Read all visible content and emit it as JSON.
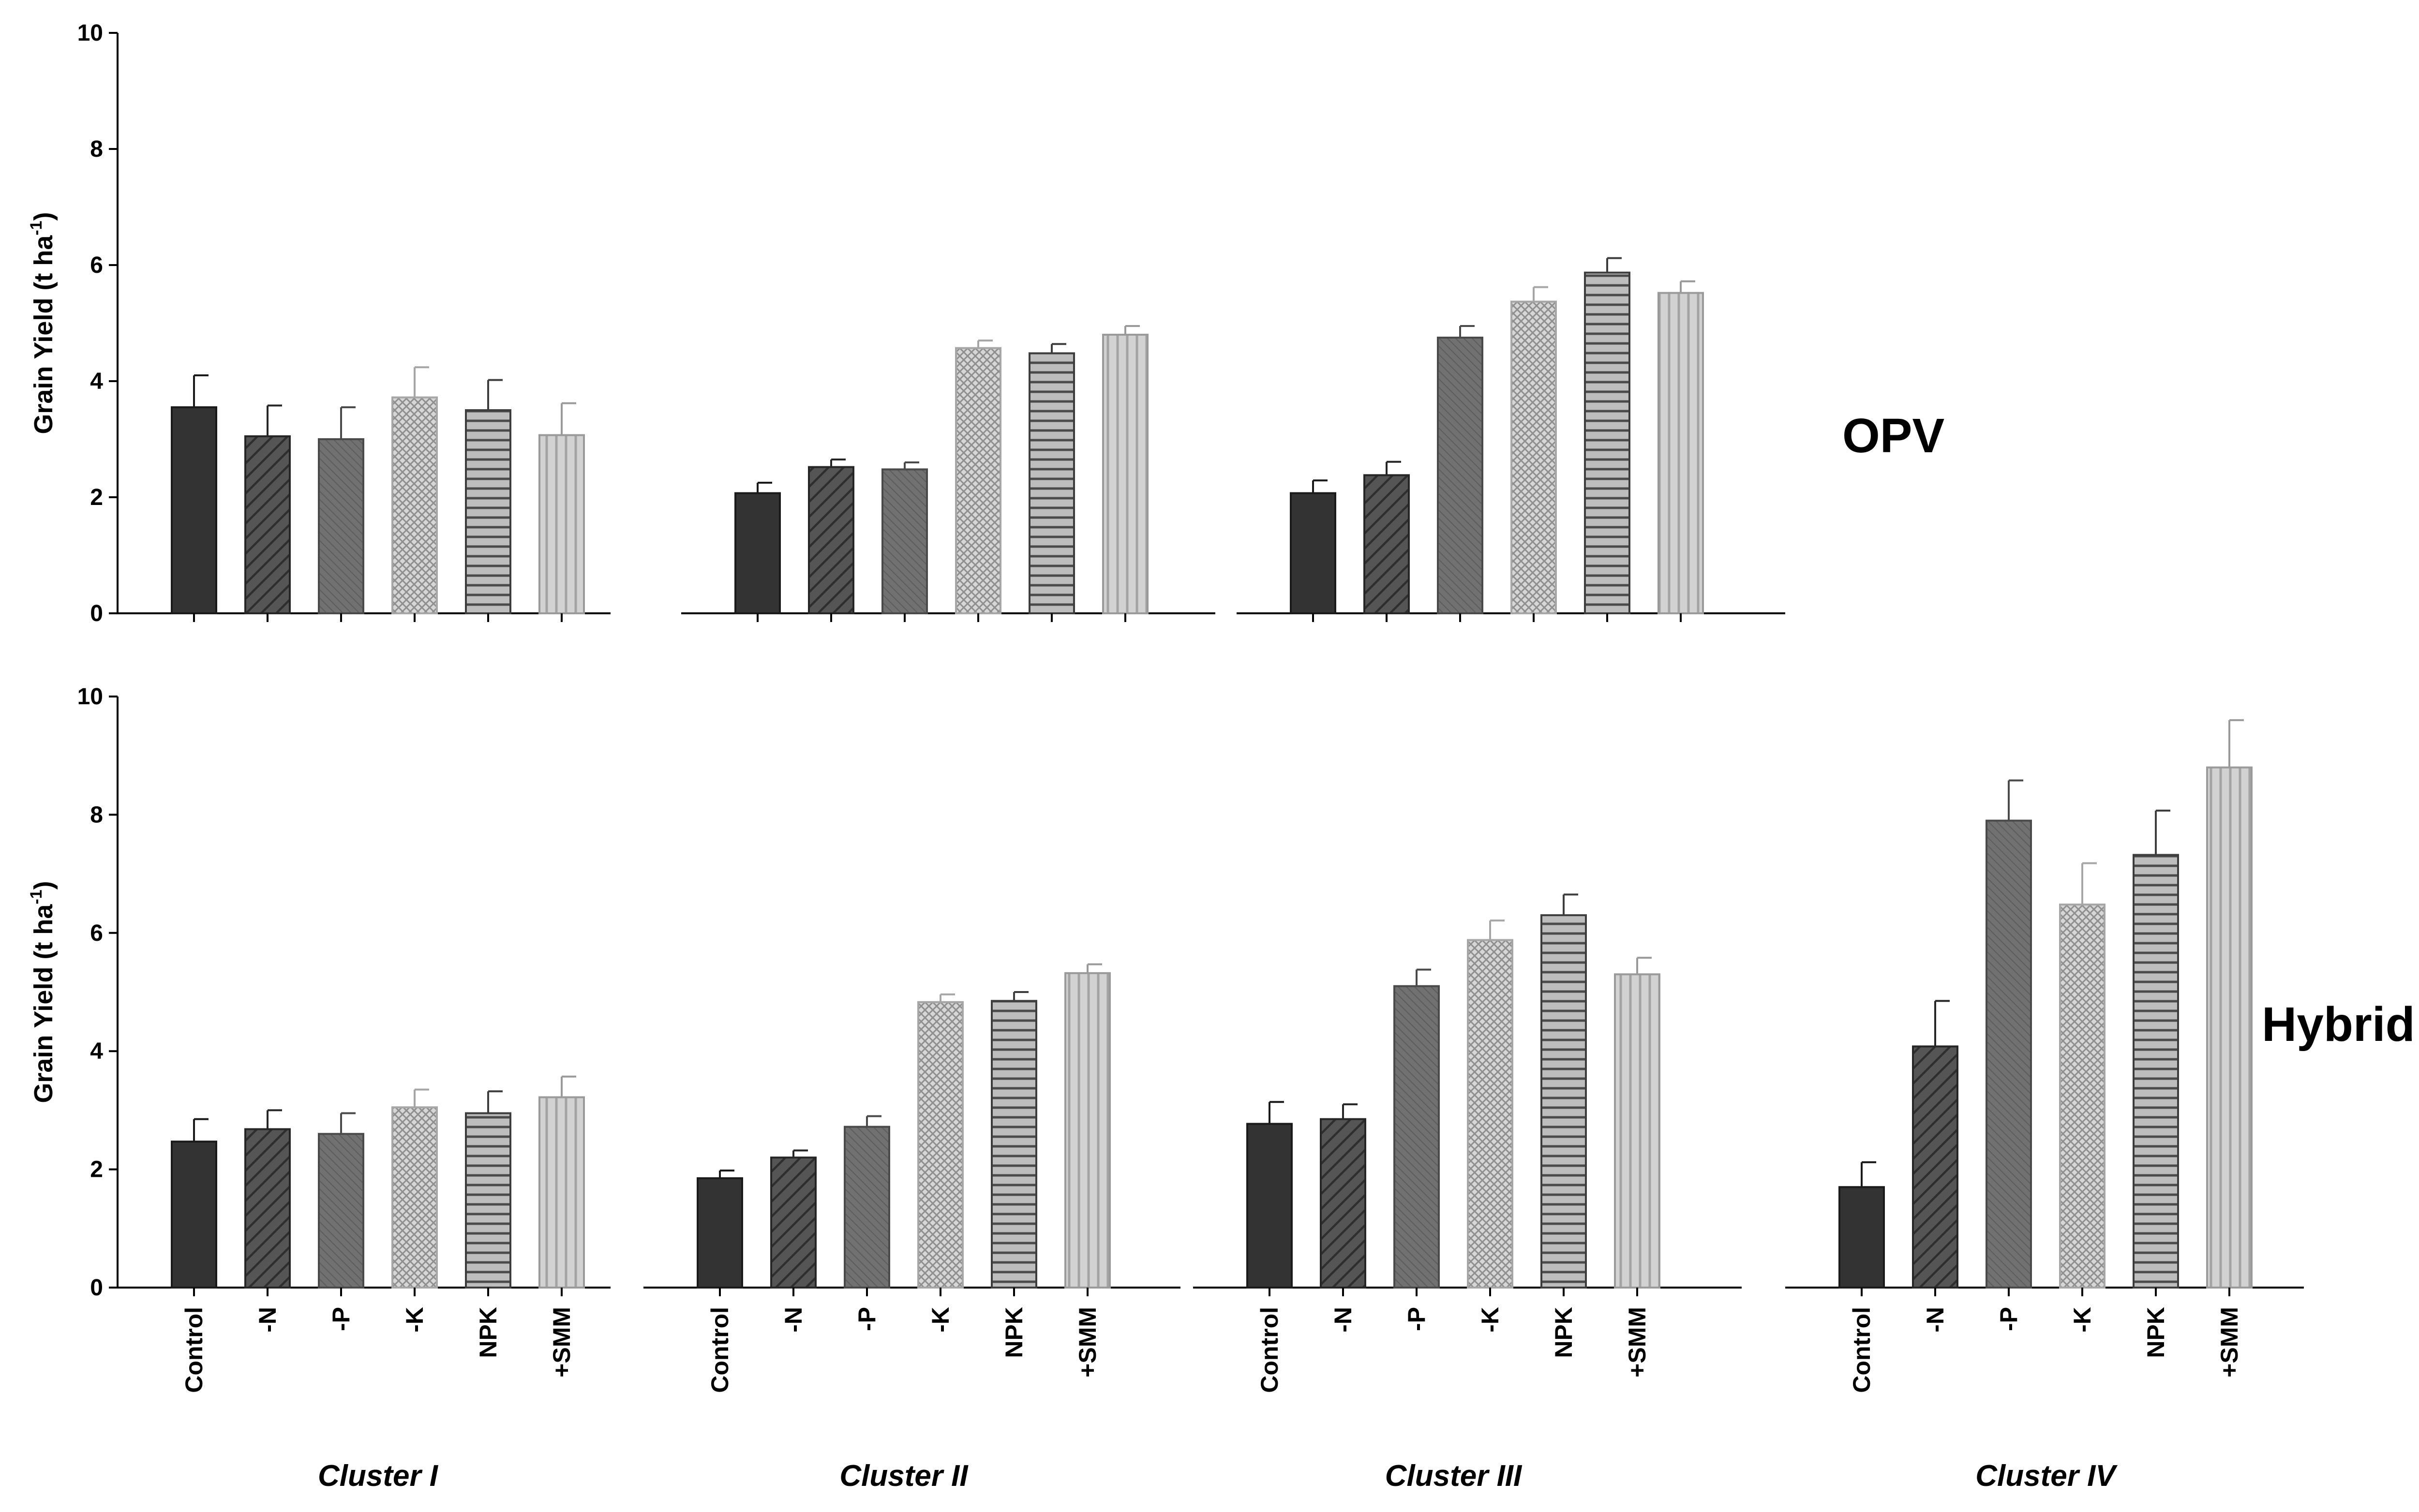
{
  "chart_data": [
    {
      "type": "bar",
      "panel": "OPV",
      "group_label": "OPV",
      "ylabel": "Grain Yield (t ha",
      "ylabel_sup": "-1",
      "ylabel_close": ")",
      "ylim": [
        0,
        10
      ],
      "yticks": [
        "0",
        "2",
        "4",
        "6",
        "8",
        "10"
      ],
      "categories": [
        "Control",
        "-N",
        "-P",
        "-K",
        "NPK",
        "+SMM"
      ],
      "clusters": [
        {
          "name": "Cluster I",
          "values": [
            3.55,
            3.05,
            3.0,
            3.72,
            3.5,
            3.07
          ],
          "errors": [
            0.55,
            0.53,
            0.55,
            0.52,
            0.52,
            0.55
          ]
        },
        {
          "name": "Cluster II",
          "values": [
            2.07,
            2.52,
            2.48,
            4.57,
            4.48,
            4.8
          ],
          "errors": [
            0.18,
            0.13,
            0.12,
            0.13,
            0.16,
            0.15
          ]
        },
        {
          "name": "Cluster III",
          "values": [
            2.07,
            2.38,
            4.75,
            5.37,
            5.87,
            5.52
          ],
          "errors": [
            0.22,
            0.23,
            0.2,
            0.25,
            0.25,
            0.2
          ]
        }
      ],
      "show_category_labels": false
    },
    {
      "type": "bar",
      "panel": "Hybrid",
      "group_label": "Hybrid",
      "ylabel": "Grain Yield (t ha",
      "ylabel_sup": "-1",
      "ylabel_close": ")",
      "ylim": [
        0,
        10
      ],
      "yticks": [
        "0",
        "2",
        "4",
        "6",
        "8",
        "10"
      ],
      "categories": [
        "Control",
        "-N",
        "-P",
        "-K",
        "NPK",
        "+SMM"
      ],
      "clusters": [
        {
          "name": "Cluster I",
          "values": [
            2.47,
            2.68,
            2.6,
            3.05,
            2.95,
            3.22
          ],
          "errors": [
            0.38,
            0.32,
            0.35,
            0.3,
            0.37,
            0.35
          ]
        },
        {
          "name": "Cluster II",
          "values": [
            1.85,
            2.2,
            2.72,
            4.83,
            4.85,
            5.32
          ],
          "errors": [
            0.13,
            0.12,
            0.18,
            0.13,
            0.15,
            0.15
          ]
        },
        {
          "name": "Cluster III",
          "values": [
            2.77,
            2.85,
            5.1,
            5.88,
            6.3,
            5.3
          ],
          "errors": [
            0.37,
            0.25,
            0.28,
            0.33,
            0.35,
            0.28
          ]
        },
        {
          "name": "Cluster IV",
          "values": [
            1.7,
            4.08,
            7.9,
            6.48,
            7.32,
            8.8
          ],
          "errors": [
            0.42,
            0.77,
            0.68,
            0.7,
            0.75,
            0.8
          ]
        }
      ],
      "show_category_labels": true
    }
  ],
  "colors": {
    "control": "#333333",
    "minus_n": "#545454",
    "minus_p": "#6b6b6b",
    "minus_k": "#c2c2c2",
    "npk": "#9e9e9e",
    "smm": "#cbcbcb",
    "axis": "#000000"
  }
}
